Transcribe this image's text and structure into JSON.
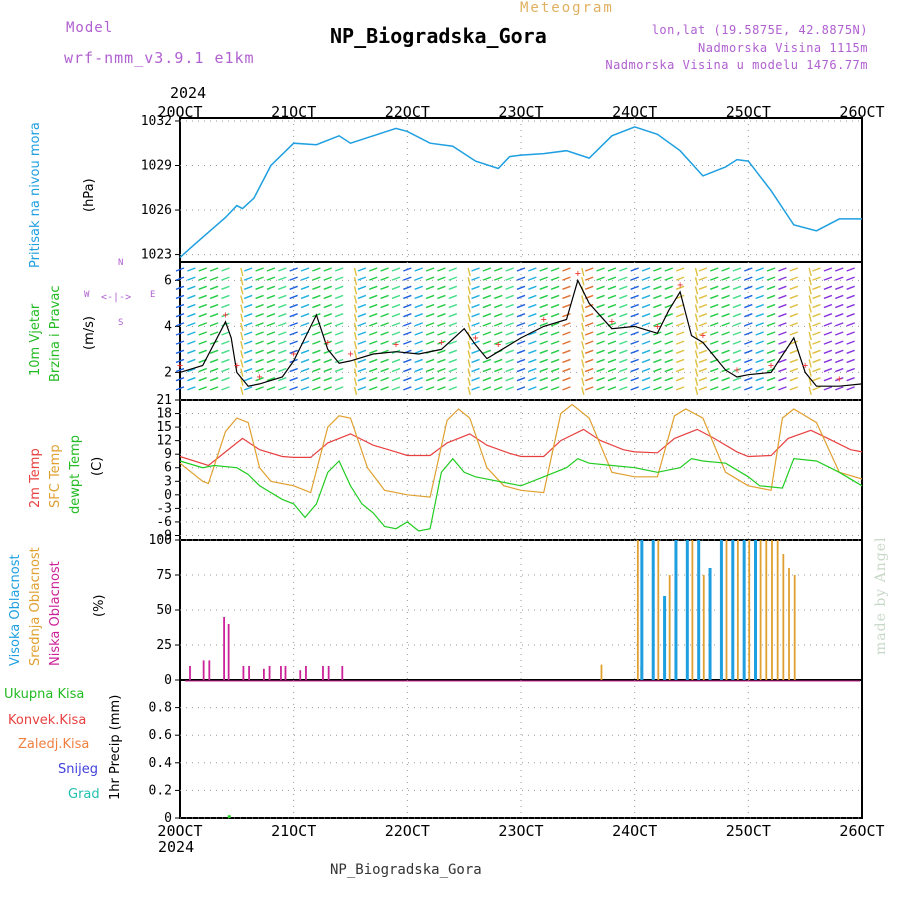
{
  "header": {
    "model_label": "Model",
    "model_name": "wrf-nmm_v3.9.1 e1km",
    "meteogram_label": "Meteogram",
    "station_title": "NP_Biogradska_Gora",
    "coords": "lon,lat (19.5875E, 42.8875N)",
    "altitude": "Nadmorska Visina 1115m",
    "model_altitude": "Nadmorska Visina u modelu 1476.77m",
    "year_top": "2024",
    "year_bottom": "2024",
    "footer": "NP_Biogradska_Gora",
    "credit": "made by Angel"
  },
  "colors": {
    "pressure": "#1e9fe0",
    "wind_label": "#22bb22",
    "speed_line": "#000000",
    "temp2m": "#e84040",
    "sfc_temp": "#e0a030",
    "dewpoint": "#22cc22",
    "high_cloud": "#1e9fe0",
    "mid_cloud": "#e0a030",
    "low_cloud": "#cc2299",
    "purple_text": "#b060d0",
    "meteogram_text": "#e0b060",
    "credit": "#c8d8c8"
  },
  "panel_labels": {
    "pressure": {
      "name": "Pritisak na nivou mora",
      "unit": "(hPa)"
    },
    "wind": {
      "name1": "10m Vjetar",
      "name2": "Brzina i Pravac",
      "unit": "(m/s)",
      "compass": [
        "N",
        "E",
        "S",
        "W"
      ]
    },
    "temp": {
      "name1": "2m Temp",
      "name2": "SFC Temp",
      "name3": "dewpt Temp",
      "unit": "(C)"
    },
    "cloud": {
      "name1": "Visoka Oblacnost",
      "name2": "Srednja Oblacnost",
      "name3": "Niska Oblacnost",
      "unit": "(%)"
    },
    "precip": {
      "legend": [
        "Ukupna Kisa",
        "Konvek.Kisa",
        "Zaledj.Kisa",
        "Snijeg",
        "Grad"
      ],
      "unit": "1hr Precip (mm)"
    }
  },
  "chart_data": [
    {
      "type": "line",
      "name": "pressure",
      "x_unit": "days since 20OCT 00Z",
      "x_ticks": [
        "20OCT",
        "21OCT",
        "22OCT",
        "23OCT",
        "24OCT",
        "25OCT",
        "26OCT"
      ],
      "ylim": [
        1022.5,
        1032.2
      ],
      "yticks": [
        1023,
        1026,
        1029,
        1032
      ],
      "series": [
        {
          "name": "Pritisak na nivou mora",
          "x": [
            0,
            0.1,
            0.25,
            0.4,
            0.5,
            0.55,
            0.65,
            0.8,
            1.0,
            1.2,
            1.4,
            1.5,
            1.7,
            1.9,
            2.0,
            2.2,
            2.4,
            2.6,
            2.8,
            2.9,
            3.0,
            3.2,
            3.4,
            3.6,
            3.8,
            4.0,
            4.2,
            4.4,
            4.6,
            4.8,
            4.9,
            5.0,
            5.2,
            5.4,
            5.6,
            5.8,
            6.0
          ],
          "values": [
            1022.8,
            1023.5,
            1024.5,
            1025.5,
            1026.3,
            1026.1,
            1026.8,
            1029.0,
            1030.5,
            1030.4,
            1031.0,
            1030.5,
            1031.0,
            1031.5,
            1031.3,
            1030.5,
            1030.3,
            1029.3,
            1028.8,
            1029.6,
            1029.7,
            1029.8,
            1030.0,
            1029.5,
            1031.0,
            1031.6,
            1031.1,
            1030.0,
            1028.3,
            1028.9,
            1029.4,
            1029.3,
            1027.3,
            1025.0,
            1024.6,
            1025.4,
            1025.4
          ]
        }
      ]
    },
    {
      "type": "line",
      "name": "wind",
      "ylim": [
        0.8,
        6.8
      ],
      "yticks": [
        2,
        4,
        6
      ],
      "series": [
        {
          "name": "speed",
          "x": [
            0,
            0.2,
            0.4,
            0.45,
            0.5,
            0.6,
            0.7,
            0.9,
            1.0,
            1.2,
            1.3,
            1.4,
            1.5,
            1.7,
            1.9,
            2.1,
            2.3,
            2.5,
            2.6,
            2.7,
            2.8,
            3.0,
            3.2,
            3.4,
            3.5,
            3.6,
            3.8,
            4.0,
            4.2,
            4.3,
            4.4,
            4.5,
            4.6,
            4.8,
            4.9,
            5.0,
            5.2,
            5.4,
            5.5,
            5.6,
            5.8,
            6.0
          ],
          "values": [
            2.0,
            2.3,
            4.2,
            3.5,
            2.0,
            1.4,
            1.5,
            1.8,
            2.5,
            4.5,
            3.0,
            2.4,
            2.5,
            2.8,
            2.9,
            2.8,
            3.0,
            3.9,
            3.2,
            2.6,
            2.9,
            3.5,
            4.0,
            4.3,
            6.0,
            5.0,
            3.9,
            4.0,
            3.7,
            4.7,
            5.5,
            3.6,
            3.3,
            2.1,
            1.8,
            1.9,
            2.0,
            3.5,
            2.0,
            1.4,
            1.4,
            1.5
          ]
        }
      ]
    },
    {
      "type": "line",
      "name": "temperature",
      "ylim": [
        -10,
        21
      ],
      "yticks": [
        -9,
        -6,
        -3,
        0,
        3,
        6,
        9,
        12,
        15,
        18,
        21
      ],
      "series": [
        {
          "name": "2m Temp",
          "x": [
            0,
            0.25,
            0.4,
            0.55,
            0.7,
            0.9,
            1.0,
            1.15,
            1.3,
            1.5,
            1.7,
            1.9,
            2.0,
            2.2,
            2.35,
            2.55,
            2.7,
            2.9,
            3.0,
            3.2,
            3.35,
            3.55,
            3.7,
            3.9,
            4.0,
            4.2,
            4.35,
            4.55,
            4.7,
            4.9,
            5.0,
            5.2,
            5.35,
            5.55,
            5.7,
            5.9,
            6.0
          ],
          "values": [
            8.5,
            6.5,
            9.5,
            12.5,
            10.0,
            8.5,
            8.3,
            8.3,
            11.5,
            13.5,
            11.0,
            9.5,
            8.7,
            8.7,
            11.5,
            13.5,
            11.0,
            9.2,
            8.5,
            8.5,
            12.0,
            14.5,
            12.0,
            10.0,
            9.5,
            9.3,
            12.5,
            14.5,
            12.5,
            9.5,
            8.5,
            8.7,
            12.5,
            14.3,
            12.5,
            10.0,
            9.5
          ]
        },
        {
          "name": "SFC Temp",
          "x": [
            0,
            0.2,
            0.25,
            0.4,
            0.5,
            0.6,
            0.7,
            0.8,
            1.0,
            1.15,
            1.3,
            1.4,
            1.5,
            1.65,
            1.8,
            2.0,
            2.2,
            2.35,
            2.45,
            2.55,
            2.7,
            2.85,
            3.0,
            3.2,
            3.35,
            3.45,
            3.6,
            3.8,
            4.0,
            4.2,
            4.35,
            4.45,
            4.6,
            4.8,
            5.0,
            5.2,
            5.3,
            5.4,
            5.6,
            5.8,
            6.0
          ],
          "values": [
            7.0,
            3.0,
            2.5,
            14.0,
            17.0,
            16.0,
            6.0,
            3.0,
            2.0,
            0.5,
            15.0,
            17.5,
            17.0,
            6.0,
            1.0,
            0.0,
            -0.5,
            16.5,
            19.0,
            17.0,
            6.0,
            2.0,
            1.0,
            0.5,
            18.0,
            20.0,
            17.0,
            5.0,
            4.0,
            4.0,
            17.5,
            19.0,
            17.0,
            5.0,
            2.0,
            1.0,
            17.0,
            19.0,
            16.0,
            5.0,
            3.5
          ]
        },
        {
          "name": "dewpt Temp",
          "x": [
            0,
            0.2,
            0.3,
            0.5,
            0.6,
            0.7,
            0.9,
            1.0,
            1.1,
            1.2,
            1.3,
            1.4,
            1.5,
            1.6,
            1.7,
            1.8,
            1.9,
            2.0,
            2.1,
            2.2,
            2.3,
            2.4,
            2.5,
            2.6,
            2.8,
            3.0,
            3.2,
            3.4,
            3.5,
            3.6,
            3.8,
            4.0,
            4.2,
            4.4,
            4.5,
            4.6,
            4.8,
            5.0,
            5.1,
            5.3,
            5.4,
            5.6,
            5.8,
            6.0
          ],
          "values": [
            7.5,
            6.0,
            6.5,
            6.0,
            4.5,
            2.0,
            -1.0,
            -2.0,
            -5.0,
            -2.0,
            5.0,
            7.5,
            2.0,
            -2.0,
            -4.0,
            -7.0,
            -7.5,
            -6.0,
            -8.0,
            -7.5,
            5.0,
            8.0,
            5.0,
            4.0,
            3.0,
            2.0,
            4.0,
            6.0,
            8.0,
            7.0,
            6.5,
            6.0,
            5.0,
            6.0,
            8.0,
            7.5,
            7.0,
            4.0,
            2.0,
            1.5,
            8.0,
            7.5,
            5.0,
            2.0
          ]
        }
      ]
    },
    {
      "type": "bar",
      "name": "cloud",
      "ylim": [
        0,
        100
      ],
      "yticks": [
        0,
        25,
        50,
        75,
        100
      ],
      "series": [
        {
          "name": "Niska Oblacnost",
          "x": [
            0.08,
            0.2,
            0.25,
            0.38,
            0.42,
            0.55,
            0.6,
            0.73,
            0.78,
            0.88,
            0.92,
            1.05,
            1.1,
            1.25,
            1.3,
            1.42
          ],
          "values": [
            10,
            14,
            14,
            45,
            40,
            10,
            10,
            8,
            10,
            10,
            10,
            7,
            10,
            10,
            10,
            10
          ]
        },
        {
          "name": "Srednja Oblacnost",
          "x": [
            3.7,
            4.02,
            4.05,
            4.2,
            4.3,
            4.5,
            4.6,
            4.8,
            4.9,
            5.0,
            5.1,
            5.15,
            5.2,
            5.25,
            5.3,
            5.35,
            5.4
          ],
          "values": [
            11,
            100,
            10,
            100,
            75,
            100,
            75,
            100,
            100,
            100,
            100,
            100,
            100,
            100,
            90,
            80,
            75
          ]
        },
        {
          "name": "Visoka Oblacnost",
          "x": [
            4.05,
            4.15,
            4.25,
            4.35,
            4.45,
            4.55,
            4.65,
            4.75,
            4.85,
            4.95,
            5.05
          ],
          "values": [
            100,
            100,
            60,
            100,
            100,
            100,
            80,
            100,
            100,
            100,
            100
          ]
        }
      ]
    },
    {
      "type": "bar",
      "name": "precip",
      "ylim": [
        0,
        1.0
      ],
      "yticks": [
        0,
        0.2,
        0.4,
        0.6,
        0.8
      ],
      "series": [
        {
          "name": "Ukupna Kisa",
          "x": [
            0.42
          ],
          "values": [
            0.02
          ]
        }
      ]
    }
  ]
}
